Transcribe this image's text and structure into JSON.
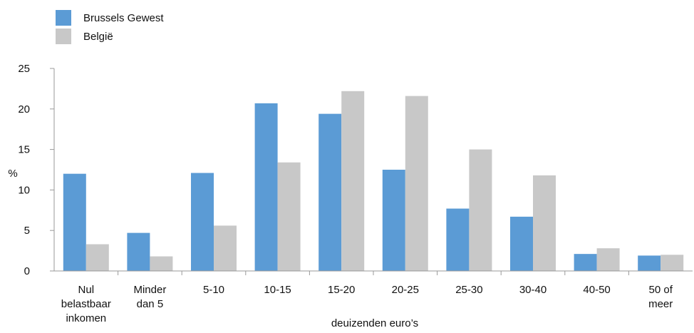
{
  "chart_data": {
    "type": "bar",
    "title": "",
    "xlabel": "deuizenden euro’s",
    "ylabel": "%",
    "ylim": [
      0,
      25
    ],
    "yticks": [
      0,
      5,
      10,
      15,
      20,
      25
    ],
    "grid": false,
    "legend_position": "top-left",
    "categories": [
      [
        "Nul",
        "belastbaar",
        "inkomen"
      ],
      [
        "Minder",
        "dan 5"
      ],
      [
        "5-10"
      ],
      [
        "10-15"
      ],
      [
        "15-20"
      ],
      [
        "20-25"
      ],
      [
        "25-30"
      ],
      [
        "30-40"
      ],
      [
        "40-50"
      ],
      [
        "50 of",
        "meer"
      ]
    ],
    "series": [
      {
        "name": "Brussels Gewest",
        "color": "#5b9bd5",
        "values": [
          12.0,
          4.7,
          12.1,
          20.7,
          19.4,
          12.5,
          7.7,
          6.7,
          2.1,
          1.9
        ]
      },
      {
        "name": "België",
        "color": "#c8c8c8",
        "values": [
          3.3,
          1.8,
          5.6,
          13.4,
          22.2,
          21.6,
          15.0,
          11.8,
          2.8,
          2.0
        ]
      }
    ]
  }
}
